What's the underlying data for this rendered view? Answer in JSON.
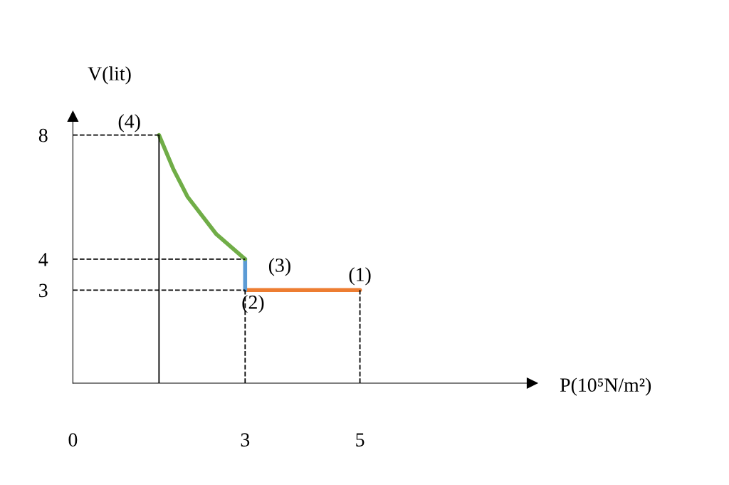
{
  "chart_data": {
    "type": "line",
    "xlabel": "P(10⁵N/m²)",
    "ylabel": "V(lit)",
    "xlim": [
      0,
      8
    ],
    "ylim": [
      0,
      8.6
    ],
    "xticks": [
      0,
      3,
      5
    ],
    "yticks": [
      3,
      4,
      8
    ],
    "grid": false,
    "legend": false,
    "marker": "none",
    "series": [
      {
        "color": "#ed7d31",
        "x": [
          5,
          3
        ],
        "values": [
          3,
          3
        ],
        "line_style": "solid"
      },
      {
        "color": "#5b9bd5",
        "x": [
          3,
          3
        ],
        "values": [
          3,
          4
        ],
        "line_style": "solid"
      },
      {
        "color": "#70ad47",
        "x": [
          3,
          2.5,
          2,
          1.75,
          1.5
        ],
        "values": [
          4,
          4.8,
          6,
          6.9,
          8
        ],
        "line_style": "solid"
      },
      {
        "color": "#000000",
        "x": [
          0,
          1.5
        ],
        "values": [
          8,
          8
        ],
        "line_style": "dashed"
      },
      {
        "color": "#000000",
        "x": [
          0,
          3
        ],
        "values": [
          4,
          4
        ],
        "line_style": "dashed"
      },
      {
        "color": "#000000",
        "x": [
          0,
          3
        ],
        "values": [
          3,
          3
        ],
        "line_style": "dashed"
      },
      {
        "color": "#000000",
        "x": [
          3,
          3
        ],
        "values": [
          0,
          3
        ],
        "line_style": "dashed"
      },
      {
        "color": "#000000",
        "x": [
          5,
          5
        ],
        "values": [
          0,
          3
        ],
        "line_style": "dashed"
      },
      {
        "color": "#000000",
        "x": [
          1.5,
          1.5
        ],
        "values": [
          0,
          8
        ],
        "line_style": "solid"
      }
    ],
    "annotations": [
      {
        "text": "(1)",
        "x": 5,
        "y": 3
      },
      {
        "text": "(2)",
        "x": 3,
        "y": 3
      },
      {
        "text": "(3)",
        "x": 3,
        "y": 4
      },
      {
        "text": "(4)",
        "x": 1.5,
        "y": 8
      }
    ]
  }
}
